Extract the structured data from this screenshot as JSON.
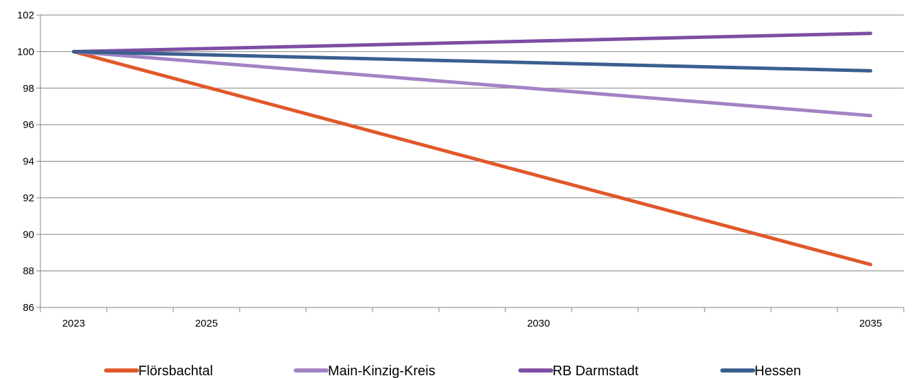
{
  "chart_data": {
    "type": "line",
    "x": [
      2023,
      2035
    ],
    "x_tick_labels": [
      "2023",
      "2025",
      "2030",
      "2035"
    ],
    "x_tick_values": [
      2023,
      2025,
      2030,
      2035
    ],
    "x_minor_ticks": [
      2023,
      2024,
      2025,
      2026,
      2027,
      2028,
      2029,
      2030,
      2031,
      2032,
      2033,
      2034,
      2035,
      2036
    ],
    "xlim": [
      2022.5,
      2035.5
    ],
    "ylim": [
      86,
      102
    ],
    "y_ticks": [
      86,
      88,
      90,
      92,
      94,
      96,
      98,
      100,
      102
    ],
    "y_tick_labels": [
      "86",
      "88",
      "90",
      "92",
      "94",
      "96",
      "98",
      "100",
      "102"
    ],
    "grid": "horizontal",
    "legend_position": "bottom",
    "series": [
      {
        "name": "Flörsbachtal",
        "color": "#E0582A",
        "values": [
          100,
          88.35
        ]
      },
      {
        "name": "Main-Kinzig-Kreis",
        "color": "#A283C4",
        "values": [
          100,
          96.5
        ]
      },
      {
        "name": "RB Darmstadt",
        "color": "#7D4DA3",
        "values": [
          100,
          101.0
        ]
      },
      {
        "name": "Hessen",
        "color": "#3A5F8F",
        "values": [
          100,
          98.95
        ]
      }
    ]
  }
}
